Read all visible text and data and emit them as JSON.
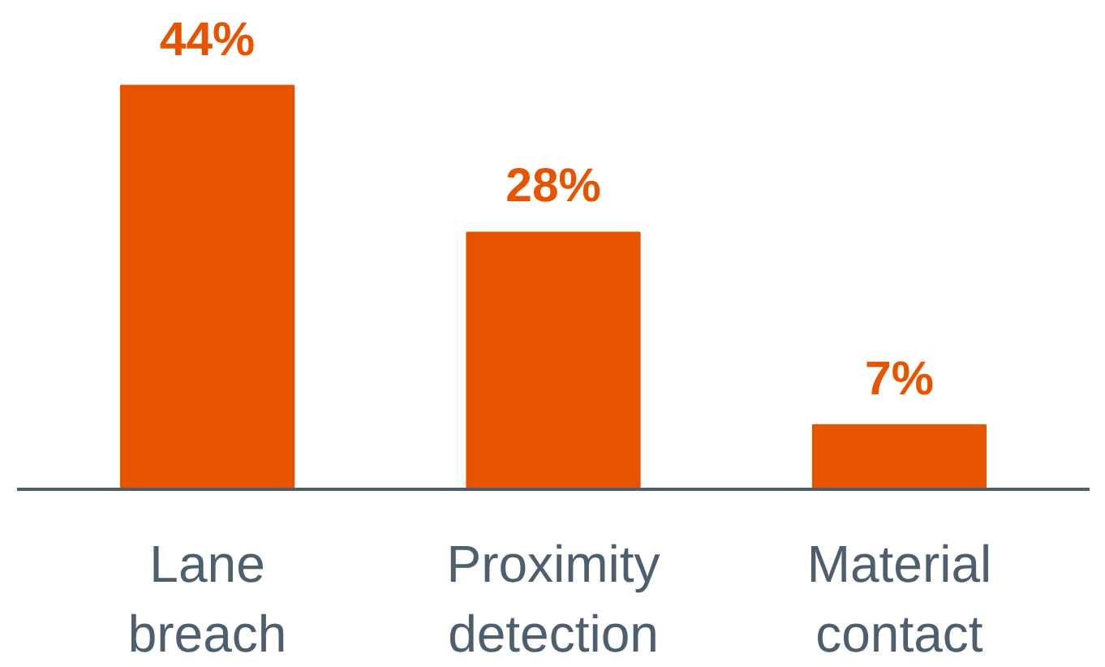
{
  "chart_data": {
    "type": "bar",
    "categories": [
      "Lane breach",
      "Proximity detection",
      "Material contact"
    ],
    "values": [
      44,
      28,
      7
    ],
    "value_labels": [
      "44%",
      "28%",
      "7%"
    ],
    "color": "#e65400"
  }
}
